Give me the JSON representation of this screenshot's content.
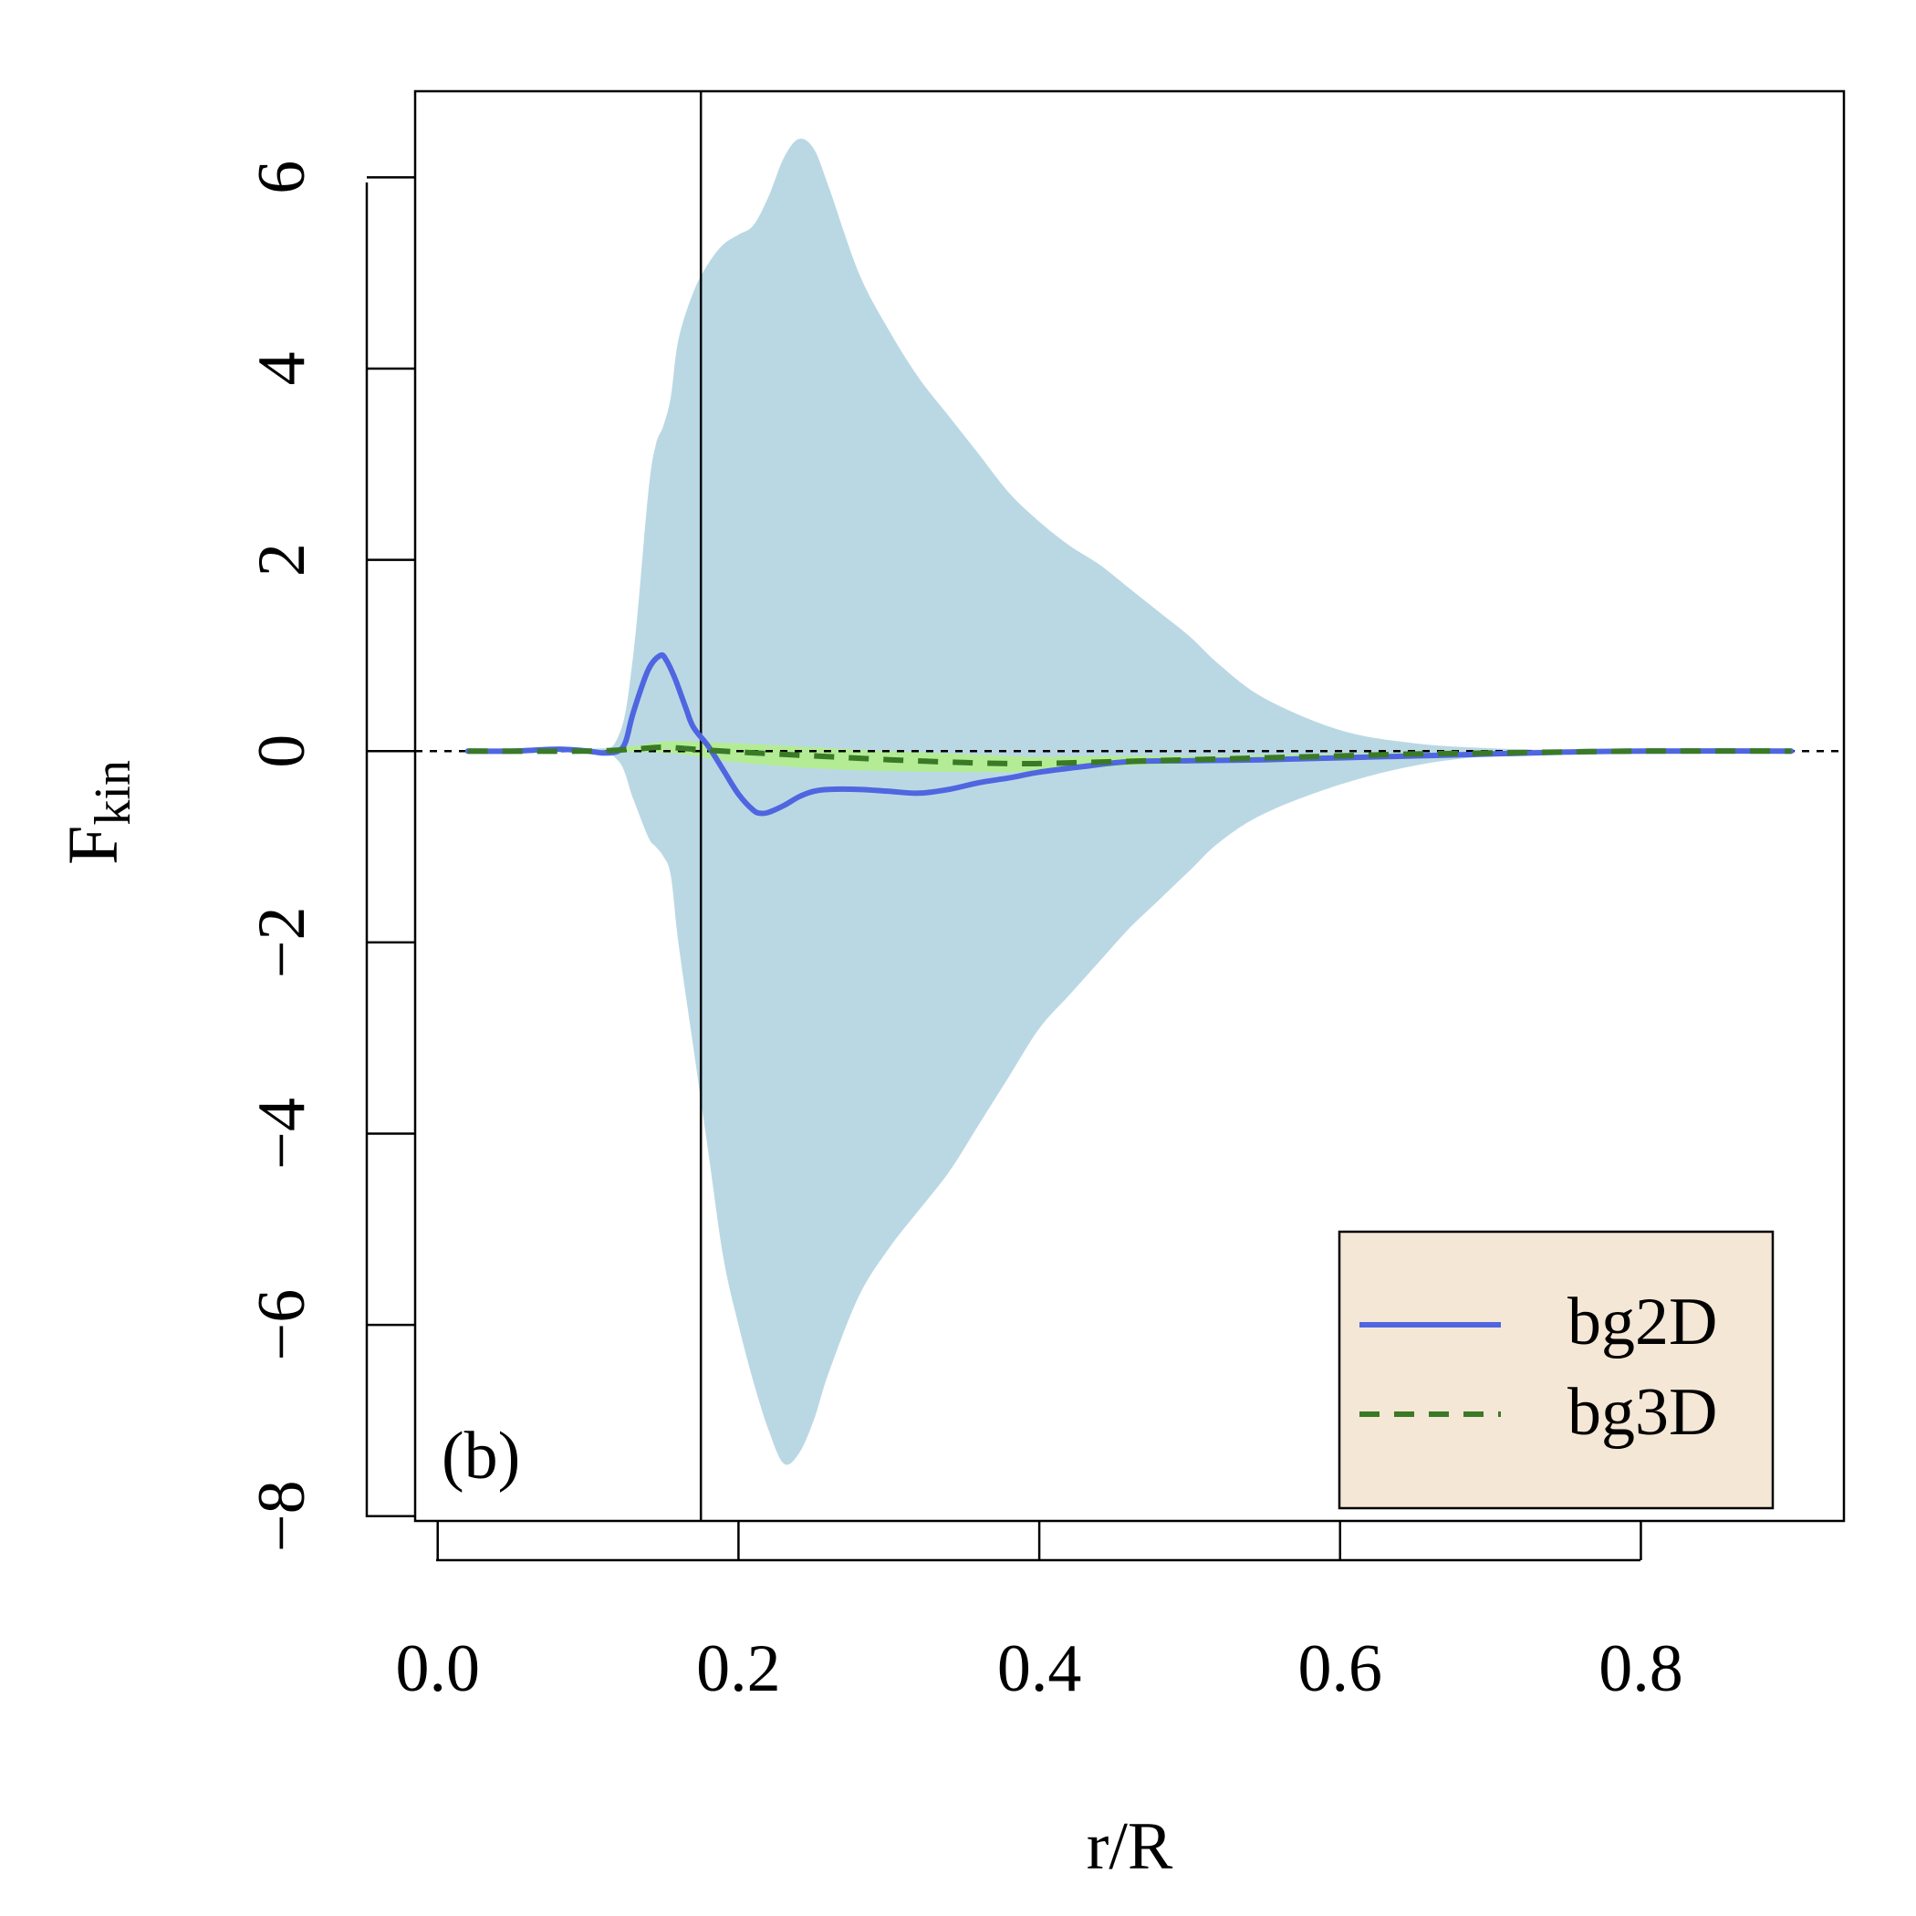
{
  "chart_data": {
    "type": "line",
    "panel_label": "(b)",
    "xlabel": "r/R",
    "ylabel_main": "F",
    "ylabel_sub": "kin",
    "xlim": [
      -0.015,
      0.935
    ],
    "ylim": [
      -8.05,
      6.9
    ],
    "xticks": [
      0.0,
      0.2,
      0.4,
      0.6,
      0.8
    ],
    "xtick_labels": [
      "0.0",
      "0.2",
      "0.4",
      "0.6",
      "0.8"
    ],
    "yticks": [
      -8,
      -6,
      -4,
      -2,
      0,
      2,
      4,
      6
    ],
    "ytick_labels": [
      "−8",
      "−6",
      "−4",
      "−2",
      "0",
      "2",
      "4",
      "6"
    ],
    "vline_x": 0.175,
    "hline_y": 0,
    "colors": {
      "envelope_fill": "#bad8e4",
      "bg3d_band_fill": "#b4ec96",
      "bg2d_line": "#4f66e0",
      "bg3d_line": "#3a7a26",
      "legend_bg": "#f5e7d5"
    },
    "legend": {
      "position": "bottom-right",
      "entries": [
        {
          "label": "bg2D",
          "style": "solid"
        },
        {
          "label": "bg3D",
          "style": "dashed"
        }
      ]
    },
    "envelope": {
      "x": [
        0.02,
        0.1,
        0.12,
        0.13,
        0.14,
        0.145,
        0.15,
        0.155,
        0.16,
        0.17,
        0.18,
        0.19,
        0.2,
        0.21,
        0.22,
        0.23,
        0.24,
        0.25,
        0.26,
        0.28,
        0.3,
        0.32,
        0.34,
        0.36,
        0.38,
        0.4,
        0.42,
        0.44,
        0.46,
        0.48,
        0.5,
        0.52,
        0.55,
        0.6,
        0.65,
        0.7,
        0.75,
        0.8,
        0.88
      ],
      "upper": [
        0.0,
        0.02,
        0.15,
        1.0,
        2.7,
        3.2,
        3.4,
        3.7,
        4.3,
        4.8,
        5.1,
        5.3,
        5.4,
        5.5,
        5.8,
        6.2,
        6.4,
        6.3,
        5.9,
        5.0,
        4.4,
        3.9,
        3.5,
        3.1,
        2.7,
        2.4,
        2.15,
        1.95,
        1.7,
        1.45,
        1.2,
        0.9,
        0.55,
        0.22,
        0.08,
        0.03,
        0.01,
        0.005,
        0.0
      ],
      "lower": [
        0.0,
        -0.02,
        -0.1,
        -0.5,
        -0.9,
        -1.0,
        -1.1,
        -1.3,
        -2.0,
        -3.1,
        -4.2,
        -5.3,
        -6.0,
        -6.6,
        -7.1,
        -7.45,
        -7.35,
        -7.0,
        -6.5,
        -5.7,
        -5.2,
        -4.8,
        -4.4,
        -3.9,
        -3.4,
        -2.9,
        -2.55,
        -2.2,
        -1.85,
        -1.55,
        -1.25,
        -0.95,
        -0.65,
        -0.35,
        -0.15,
        -0.05,
        -0.02,
        -0.01,
        0.0
      ]
    },
    "series": [
      {
        "name": "bg2D",
        "x": [
          0.02,
          0.05,
          0.08,
          0.1,
          0.11,
          0.12,
          0.125,
          0.13,
          0.14,
          0.148,
          0.152,
          0.158,
          0.165,
          0.17,
          0.18,
          0.19,
          0.2,
          0.21,
          0.215,
          0.22,
          0.23,
          0.24,
          0.25,
          0.26,
          0.28,
          0.3,
          0.32,
          0.34,
          0.36,
          0.38,
          0.4,
          0.43,
          0.46,
          0.5,
          0.55,
          0.6,
          0.65,
          0.7,
          0.75,
          0.8,
          0.9
        ],
        "y": [
          0.0,
          0.0,
          0.02,
          0.0,
          -0.02,
          0.0,
          0.1,
          0.4,
          0.85,
          1.0,
          0.95,
          0.75,
          0.45,
          0.25,
          0.05,
          -0.2,
          -0.45,
          -0.62,
          -0.65,
          -0.64,
          -0.57,
          -0.48,
          -0.42,
          -0.4,
          -0.4,
          -0.42,
          -0.44,
          -0.4,
          -0.33,
          -0.28,
          -0.22,
          -0.16,
          -0.11,
          -0.1,
          -0.09,
          -0.07,
          -0.05,
          -0.03,
          -0.01,
          0.0,
          0.0
        ]
      },
      {
        "name": "bg3D",
        "x": [
          0.02,
          0.1,
          0.13,
          0.15,
          0.17,
          0.2,
          0.25,
          0.3,
          0.35,
          0.38,
          0.4,
          0.45,
          0.5,
          0.55,
          0.6,
          0.65,
          0.7,
          0.8,
          0.9
        ],
        "y": [
          0.0,
          0.0,
          0.02,
          0.04,
          0.02,
          -0.01,
          -0.05,
          -0.09,
          -0.12,
          -0.13,
          -0.13,
          -0.11,
          -0.09,
          -0.07,
          -0.05,
          -0.03,
          -0.02,
          0.0,
          0.0
        ],
        "band_upper": [
          0.0,
          0.01,
          0.05,
          0.1,
          0.1,
          0.08,
          0.04,
          0.0,
          -0.03,
          -0.05,
          -0.06,
          -0.05,
          -0.05,
          -0.04,
          -0.03,
          -0.02,
          -0.01,
          0.0,
          0.0
        ],
        "band_lower": [
          0.0,
          -0.01,
          -0.01,
          -0.02,
          -0.05,
          -0.12,
          -0.18,
          -0.21,
          -0.22,
          -0.22,
          -0.2,
          -0.16,
          -0.13,
          -0.1,
          -0.07,
          -0.04,
          -0.02,
          0.0,
          0.0
        ]
      }
    ]
  }
}
